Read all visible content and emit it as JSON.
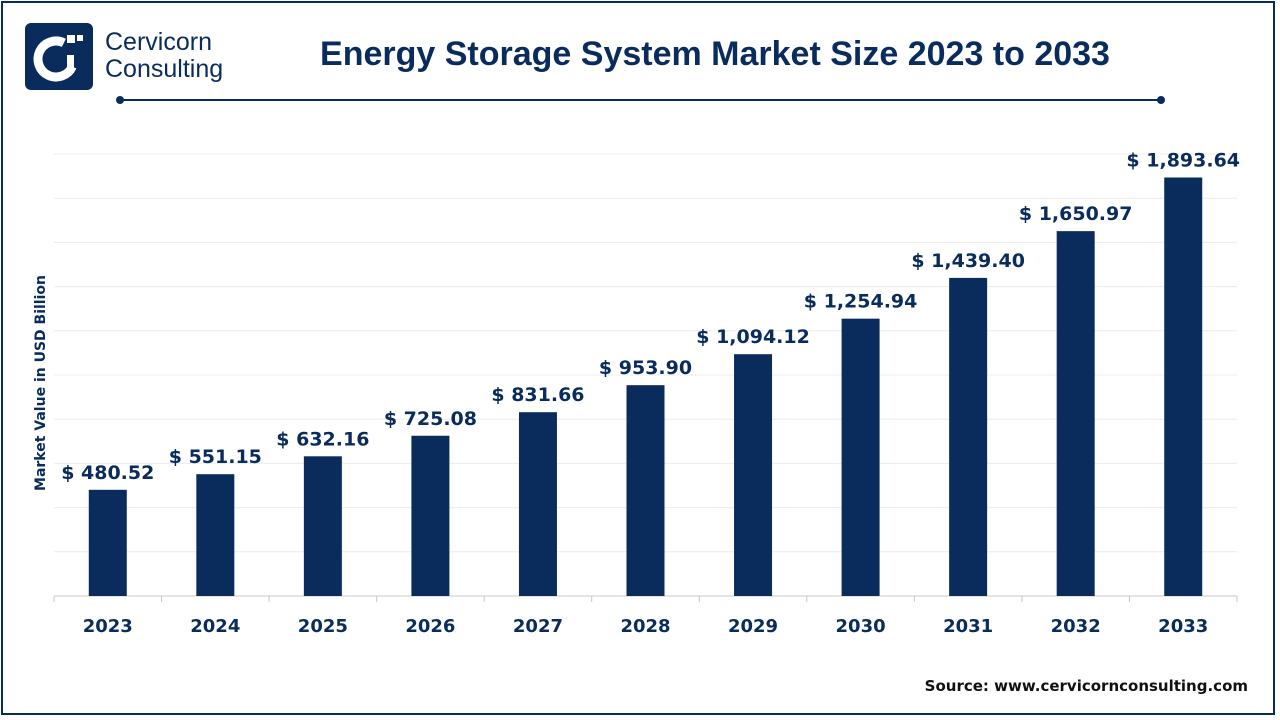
{
  "brand": {
    "name_line1": "Cervicorn",
    "name_line2": "Consulting",
    "logo_icon": "cervicorn-logo-icon",
    "primary_color": "#0a2c5c"
  },
  "source": {
    "label": "Source:",
    "url": "www.cervicornconsulting.com"
  },
  "chart_data": {
    "type": "bar",
    "title": "Energy Storage System Market Size 2023 to 2033",
    "xlabel": "",
    "ylabel": "Market Value in USD Billion",
    "categories": [
      "2023",
      "2024",
      "2025",
      "2026",
      "2027",
      "2028",
      "2029",
      "2030",
      "2031",
      "2032",
      "2033"
    ],
    "values": [
      480.52,
      551.15,
      632.16,
      725.08,
      831.66,
      953.9,
      1094.12,
      1254.94,
      1439.4,
      1650.97,
      1893.64
    ],
    "value_labels": [
      "$ 480.52",
      "$ 551.15",
      "$ 632.16",
      "$ 725.08",
      "$ 831.66",
      "$ 953.90",
      "$ 1,094.12",
      "$ 1,254.94",
      "$ 1,439.40",
      "$ 1,650.97",
      "$ 1,893.64"
    ],
    "ylim": [
      0,
      2000
    ],
    "grid": true,
    "legend": "none",
    "bar_color": "#0a2c5c"
  }
}
